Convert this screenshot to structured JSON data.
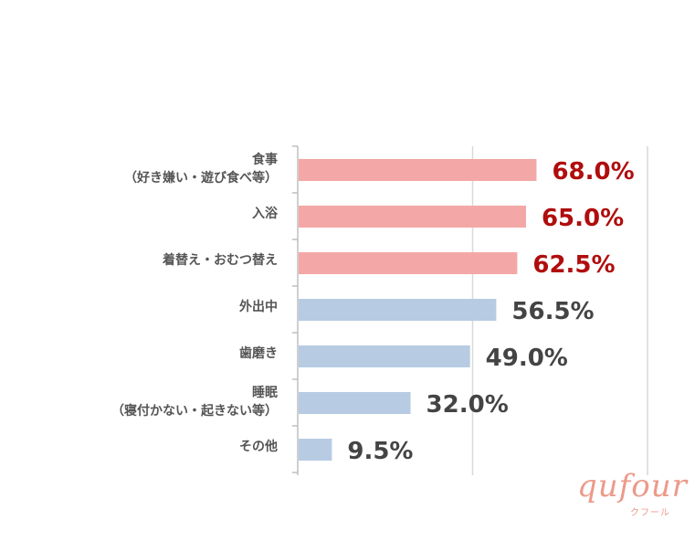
{
  "chart_data": {
    "type": "bar",
    "orientation": "horizontal",
    "categories": [
      [
        "食事",
        "（好き嫌い・遊び食べ等）"
      ],
      [
        "入浴"
      ],
      [
        "着替え・おむつ替え"
      ],
      [
        "外出中"
      ],
      [
        "歯磨き"
      ],
      [
        "睡眠",
        "（寝付かない・起きない等）"
      ],
      [
        "その他"
      ]
    ],
    "values": [
      68.0,
      65.0,
      62.5,
      56.5,
      49.0,
      32.0,
      9.5
    ],
    "value_labels": [
      "68.0%",
      "65.0%",
      "62.5%",
      "56.5%",
      "49.0%",
      "32.0%",
      "9.5%"
    ],
    "highlighted": [
      true,
      true,
      true,
      false,
      false,
      false,
      false
    ],
    "xlim": [
      0,
      100
    ],
    "grid": true,
    "title": "",
    "xlabel": "",
    "ylabel": ""
  },
  "colors": {
    "bar_highlight": "#f4a7a7",
    "bar_normal": "#b7cbe3",
    "label_highlight": "#b00d0d",
    "label_normal": "#444444",
    "grid": "#d9d9d9",
    "axis": "#bfbfbf"
  },
  "brand": {
    "name": "qufour",
    "kana": "クフール"
  }
}
